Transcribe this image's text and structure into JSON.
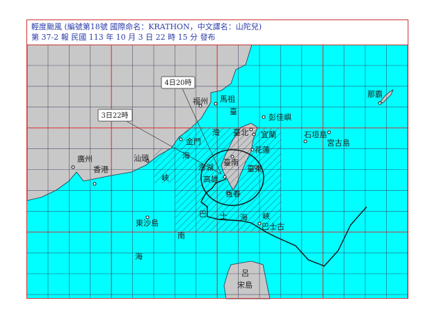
{
  "header": {
    "line1": "輕度颱風 (編號第18號 國際命名：KRATHON，中文譯名：山陀兒)",
    "line2": "第 37-2 報 民國 113 年 10 月 3 日 22 時 15 分 發布"
  },
  "forecast_labels": [
    "4日20時",
    "3日22時"
  ],
  "places": {
    "fuzhou": "福州",
    "matsu": "馬祖",
    "tai": "臺",
    "pengjia": "彭佳嶼",
    "taipei": "臺北",
    "yilan": "宜蘭",
    "kinmen": "金門",
    "wan": "灣",
    "ishigaki": "石垣島",
    "miyako": "宮古島",
    "naha": "那霸",
    "hualien": "花蓮",
    "hai1": "海",
    "xia1": "峽",
    "shantou": "汕頭",
    "guangzhou": "廣州",
    "hongkong": "香港",
    "tainan": "臺南",
    "penghu": "澎湖",
    "kaohsiung": "高雄",
    "taitung": "臺東",
    "hengchun": "恆春",
    "ba": "巴",
    "shi": "士",
    "hai2": "海",
    "xia2": "峽",
    "basco": "巴士古",
    "dongsha": "東沙島",
    "nan": "南",
    "hai3": "海",
    "lu": "呂",
    "song": "宋島"
  },
  "colors": {
    "sea": "#00ffff",
    "land": "#c8c8c8",
    "grid": "#224",
    "major_grid": "#e02020",
    "track": "#111"
  }
}
